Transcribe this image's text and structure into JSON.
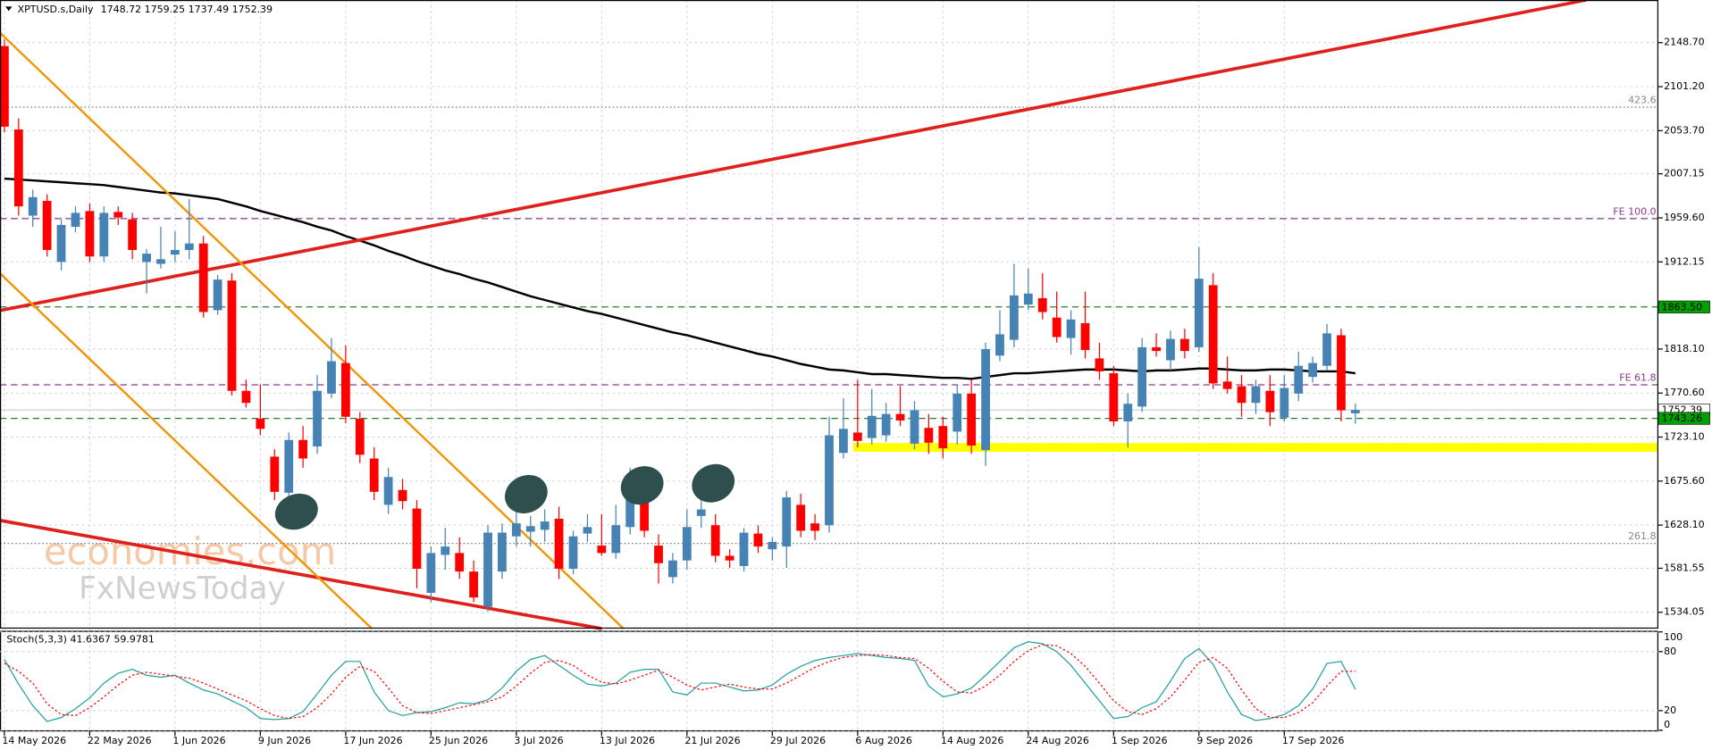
{
  "chart_data": {
    "type": "candlestick",
    "symbol": "XPTUSD.s,Daily",
    "ohlc_text": "1748.72 1759.25 1737.49 1752.39",
    "categories": [
      "14 May 2026",
      null,
      null,
      null,
      null,
      null,
      "22 May 2026",
      null,
      null,
      null,
      null,
      null,
      "1 Jun 2026",
      null,
      null,
      null,
      null,
      null,
      "9 Jun 2026",
      null,
      null,
      null,
      null,
      null,
      "17 Jun 2026",
      null,
      null,
      null,
      null,
      null,
      "25 Jun 2026",
      null,
      null,
      null,
      null,
      null,
      "3 Jul 2026",
      null,
      null,
      null,
      null,
      null,
      "13 Jul 2026",
      null,
      null,
      null,
      null,
      null,
      "21 Jul 2026",
      null,
      null,
      null,
      null,
      null,
      "29 Jul 2026",
      null,
      null,
      null,
      null,
      null,
      "6 Aug 2026",
      null,
      null,
      null,
      null,
      null,
      "14 Aug 2026",
      null,
      null,
      null,
      null,
      null,
      "24 Aug 2026",
      null,
      null,
      null,
      null,
      null,
      "1 Sep 2026",
      null,
      null,
      null,
      null,
      null,
      "9 Sep 2026",
      null,
      null,
      null,
      null,
      null,
      "17 Sep 2026",
      null,
      null,
      null,
      null,
      null
    ],
    "open": [
      2145,
      2055,
      1962,
      1978,
      1912,
      1950,
      1967,
      1918,
      1966,
      1958,
      1912,
      1910,
      1920,
      1925,
      1932,
      1860,
      1892,
      1773,
      1743,
      1702,
      1663,
      1720,
      1713,
      1770,
      1803,
      1743,
      1700,
      1650,
      1666,
      1646,
      1555,
      1596,
      1598,
      1578,
      1540,
      1578,
      1616,
      1621,
      1623,
      1635,
      1581,
      1619,
      1606,
      1598,
      1626,
      1675,
      1606,
      1572,
      1590,
      1638,
      1628,
      1595,
      1584,
      1619,
      1602,
      1605,
      1650,
      1630,
      1628,
      1706,
      1728,
      1722,
      1725,
      1748,
      1716,
      1733,
      1735,
      1729,
      1770,
      1709,
      1811,
      1828,
      1866,
      1873,
      1852,
      1830,
      1846,
      1808,
      1792,
      1740,
      1756,
      1820,
      1806,
      1829,
      1820,
      1887,
      1783,
      1778,
      1760,
      1773,
      1744,
      1770,
      1788,
      1800,
      1833,
      1748.72
    ],
    "high": [
      2152,
      2067,
      1990,
      1985,
      1958,
      1972,
      1975,
      1972,
      1972,
      1965,
      1926,
      1950,
      1945,
      1980,
      1940,
      1898,
      1900,
      1785,
      1780,
      1710,
      1728,
      1735,
      1790,
      1830,
      1822,
      1750,
      1712,
      1690,
      1678,
      1655,
      1605,
      1625,
      1615,
      1590,
      1628,
      1630,
      1660,
      1638,
      1645,
      1648,
      1622,
      1640,
      1640,
      1650,
      1690,
      1685,
      1618,
      1598,
      1645,
      1670,
      1640,
      1602,
      1625,
      1628,
      1615,
      1665,
      1662,
      1640,
      1745,
      1765,
      1785,
      1775,
      1760,
      1778,
      1762,
      1748,
      1745,
      1780,
      1785,
      1825,
      1860,
      1910,
      1905,
      1900,
      1880,
      1860,
      1880,
      1825,
      1800,
      1770,
      1830,
      1835,
      1838,
      1840,
      1928,
      1900,
      1810,
      1790,
      1785,
      1790,
      1790,
      1815,
      1810,
      1845,
      1840,
      1759.25
    ],
    "low": [
      2052,
      1962,
      1950,
      1918,
      1903,
      1944,
      1912,
      1912,
      1952,
      1915,
      1878,
      1905,
      1912,
      1915,
      1852,
      1855,
      1768,
      1755,
      1725,
      1655,
      1650,
      1690,
      1705,
      1765,
      1738,
      1695,
      1655,
      1640,
      1645,
      1560,
      1545,
      1580,
      1570,
      1545,
      1535,
      1570,
      1605,
      1605,
      1610,
      1570,
      1575,
      1610,
      1595,
      1592,
      1618,
      1615,
      1565,
      1565,
      1580,
      1625,
      1588,
      1582,
      1578,
      1598,
      1590,
      1582,
      1615,
      1612,
      1620,
      1700,
      1712,
      1715,
      1718,
      1735,
      1710,
      1705,
      1700,
      1715,
      1705,
      1692,
      1805,
      1820,
      1860,
      1850,
      1825,
      1812,
      1808,
      1785,
      1735,
      1712,
      1750,
      1810,
      1795,
      1808,
      1815,
      1775,
      1770,
      1745,
      1748,
      1735,
      1740,
      1762,
      1782,
      1795,
      1740,
      1737.49
    ],
    "close": [
      2058,
      1972,
      1982,
      1925,
      1952,
      1965,
      1918,
      1965,
      1960,
      1925,
      1921,
      1915,
      1925,
      1932,
      1858,
      1893,
      1773,
      1760,
      1732,
      1664,
      1720,
      1700,
      1773,
      1805,
      1745,
      1704,
      1664,
      1680,
      1654,
      1581,
      1598,
      1605,
      1578,
      1550,
      1620,
      1620,
      1630,
      1627,
      1632,
      1581,
      1616,
      1626,
      1598,
      1628,
      1678,
      1622,
      1587,
      1590,
      1626,
      1645,
      1595,
      1590,
      1620,
      1605,
      1610,
      1658,
      1622,
      1622,
      1725,
      1732,
      1719,
      1746,
      1748,
      1741,
      1752,
      1717,
      1711,
      1770,
      1714,
      1818,
      1834,
      1876,
      1878,
      1858,
      1831,
      1850,
      1817,
      1794,
      1740,
      1759,
      1820,
      1816,
      1829,
      1816,
      1894,
      1781,
      1775,
      1760,
      1778,
      1750,
      1776,
      1800,
      1803,
      1835,
      1752,
      1752.39
    ],
    "up_color": "#4682b4",
    "down_color": "#ff0000",
    "ma": {
      "color": "#000000",
      "values": [
        2002,
        2001,
        2000,
        1999,
        1998,
        1997,
        1996,
        1995,
        1993,
        1991,
        1989,
        1987,
        1986,
        1984,
        1982,
        1980,
        1976,
        1972,
        1967,
        1963,
        1959,
        1955,
        1950,
        1946,
        1940,
        1935,
        1930,
        1924,
        1919,
        1913,
        1908,
        1903,
        1899,
        1894,
        1890,
        1885,
        1880,
        1875,
        1871,
        1867,
        1863,
        1859,
        1856,
        1852,
        1848,
        1844,
        1840,
        1836,
        1833,
        1829,
        1825,
        1821,
        1817,
        1813,
        1810,
        1806,
        1802,
        1799,
        1796,
        1795,
        1793,
        1791,
        1791,
        1790,
        1789,
        1788,
        1787,
        1787,
        1786,
        1788,
        1790,
        1792,
        1792,
        1793,
        1794,
        1795,
        1796,
        1796,
        1796,
        1795,
        1794,
        1795,
        1795,
        1796,
        1797,
        1797,
        1796,
        1795,
        1795,
        1796,
        1796,
        1795,
        1794,
        1794,
        1794,
        1792
      ]
    },
    "ylim": [
      1516.4,
      2194.7
    ],
    "yticks": [
      {
        "value": 2148.7,
        "label": "2148.70"
      },
      {
        "value": 2101.2,
        "label": "2101.20"
      },
      {
        "value": 2053.7,
        "label": "2053.70"
      },
      {
        "value": 2007.15,
        "label": "2007.15"
      },
      {
        "value": 1959.6,
        "label": "1959.60"
      },
      {
        "value": 1912.15,
        "label": "1912.15"
      },
      {
        "value": 1818.1,
        "label": "1818.10"
      },
      {
        "value": 1770.6,
        "label": "1770.60"
      },
      {
        "value": 1723.1,
        "label": "1723.10"
      },
      {
        "value": 1675.6,
        "label": "1675.60"
      },
      {
        "value": 1628.1,
        "label": "1628.10"
      },
      {
        "value": 1581.55,
        "label": "1581.55"
      },
      {
        "value": 1534.05,
        "label": "1534.05"
      }
    ],
    "grid": true,
    "levels": [
      {
        "label": "423.6",
        "value": 2079.1,
        "color": "#888888",
        "style": "dotted"
      },
      {
        "label": "FE 100.0",
        "value": 1958.8,
        "color": "#8b3a8b",
        "style": "dashed"
      },
      {
        "label": "FE 61.8",
        "value": 1779.5,
        "color": "#8b3a8b",
        "style": "dashed"
      },
      {
        "label": "261.8",
        "value": 1608.4,
        "color": "#888888",
        "style": "dotted"
      }
    ],
    "price_tags": [
      {
        "value": 1863.5,
        "label": "1863.50",
        "color": "#00a000",
        "line": "#2e7d32"
      },
      {
        "value": 1752.39,
        "label": "1752.39",
        "color": "#ffffff",
        "line": "#c8d4dc"
      },
      {
        "value": 1743.26,
        "label": "1743.26",
        "color": "#00a000",
        "line": "#2e7d32"
      }
    ],
    "zone": {
      "value": 1712,
      "color": "#ffff00"
    },
    "indicator": {
      "title": "Stoch(5,3,3) 41.6367 59.9781",
      "ylim": [
        0,
        100
      ],
      "yticks": [
        100,
        80,
        20,
        0
      ],
      "series": [
        {
          "color": "#20a0a0",
          "style": "solid",
          "values": [
            72,
            47,
            25,
            9,
            13,
            22,
            33,
            48,
            58,
            62,
            56,
            54,
            56,
            48,
            41,
            37,
            30,
            23,
            12,
            11,
            12,
            19,
            37,
            56,
            70,
            70,
            39,
            20,
            15,
            18,
            19,
            23,
            28,
            27,
            31,
            43,
            60,
            72,
            76,
            66,
            56,
            47,
            45,
            48,
            59,
            62,
            62,
            39,
            36,
            48,
            48,
            44,
            40,
            41,
            46,
            57,
            65,
            71,
            74,
            76,
            78,
            76,
            74,
            73,
            71,
            45,
            34,
            37,
            43,
            56,
            70,
            84,
            90,
            88,
            80,
            66,
            48,
            30,
            12,
            14,
            23,
            29,
            50,
            73,
            83,
            67,
            39,
            16,
            10,
            12,
            16,
            25,
            42,
            68,
            70,
            41.6367
          ]
        },
        {
          "color": "#ff0000",
          "style": "dotted",
          "values": [
            68,
            60,
            48,
            27,
            16,
            15,
            23,
            34,
            46,
            56,
            59,
            57,
            55,
            53,
            48,
            42,
            36,
            30,
            22,
            15,
            12,
            14,
            23,
            37,
            54,
            65,
            60,
            43,
            25,
            18,
            17,
            20,
            23,
            26,
            29,
            34,
            45,
            58,
            69,
            71,
            66,
            56,
            49,
            47,
            51,
            56,
            61,
            54,
            46,
            41,
            44,
            47,
            44,
            42,
            42,
            48,
            56,
            64,
            70,
            74,
            76,
            77,
            76,
            74,
            73,
            63,
            50,
            39,
            38,
            45,
            56,
            70,
            81,
            87,
            86,
            78,
            65,
            48,
            30,
            19,
            16,
            22,
            34,
            51,
            69,
            74,
            63,
            41,
            22,
            13,
            13,
            18,
            28,
            45,
            60,
            59.9781
          ]
        }
      ]
    },
    "watermark": [
      "economies.com",
      "FxNewsToday"
    ]
  }
}
